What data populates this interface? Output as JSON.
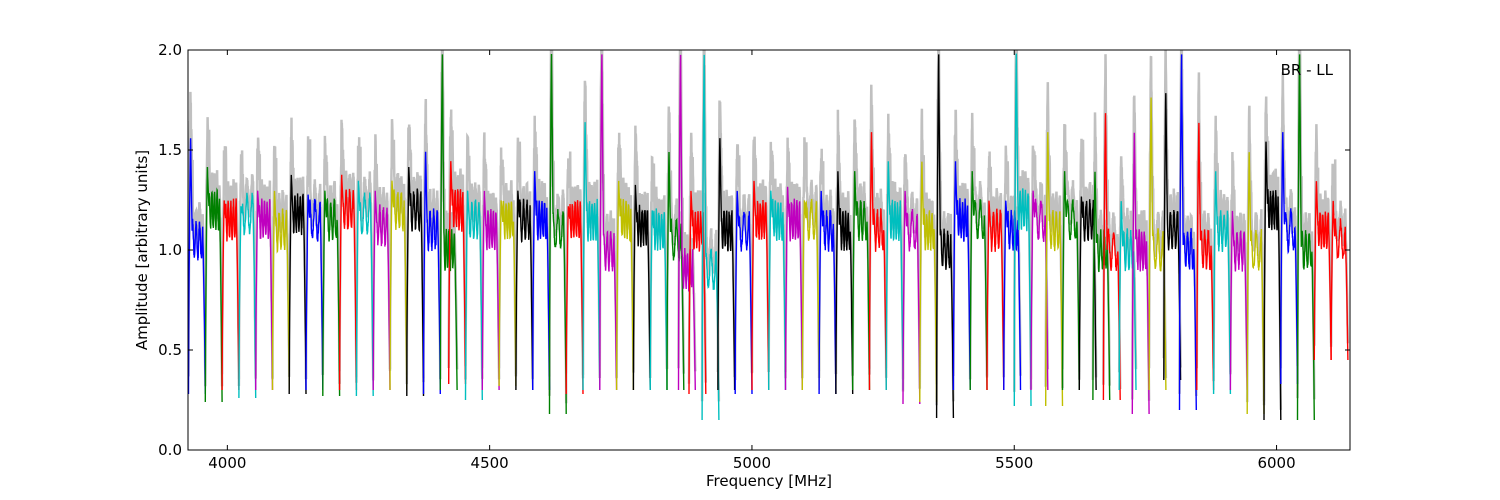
{
  "chart_data": {
    "type": "line",
    "xlabel": "Frequency [MHz]",
    "ylabel": "Amplitude [arbitrary units]",
    "annotation": "BR - LL",
    "xlim": [
      3925,
      6140
    ],
    "ylim": [
      0.0,
      2.0
    ],
    "x_ticks": [
      4000,
      4500,
      5000,
      5500,
      6000
    ],
    "y_ticks": [
      0.0,
      0.5,
      1.0,
      1.5,
      2.0
    ],
    "x_tick_labels": [
      "4000",
      "4500",
      "5000",
      "5500",
      "6000"
    ],
    "y_tick_labels": [
      "0.0",
      "0.5",
      "1.0",
      "1.5",
      "2.0"
    ],
    "grid": false,
    "colors": [
      "#0000ff",
      "#008000",
      "#ff0000",
      "#00bfbf",
      "#bf00bf",
      "#bfbf00",
      "#000000"
    ],
    "background_trace_color": "#c0c0c0",
    "spw_width_mhz": 32,
    "series": [
      {
        "color": "#0000ff",
        "x_start": 3926,
        "peak": 1.57,
        "level": 1.05,
        "floor": 0.28
      },
      {
        "color": "#008000",
        "x_start": 3958,
        "peak": 1.42,
        "level": 1.2,
        "floor": 0.24
      },
      {
        "color": "#ff0000",
        "x_start": 3990,
        "peak": 1.25,
        "level": 1.15,
        "floor": 0.3
      },
      {
        "color": "#00bfbf",
        "x_start": 4022,
        "peak": 1.22,
        "level": 1.18,
        "floor": 0.26
      },
      {
        "color": "#bf00bf",
        "x_start": 4054,
        "peak": 1.3,
        "level": 1.15,
        "floor": 0.3
      },
      {
        "color": "#bfbf00",
        "x_start": 4086,
        "peak": 1.3,
        "level": 1.1,
        "floor": 0.3
      },
      {
        "color": "#000000",
        "x_start": 4118,
        "peak": 1.38,
        "level": 1.18,
        "floor": 0.28
      },
      {
        "color": "#0000ff",
        "x_start": 4150,
        "peak": 1.28,
        "level": 1.15,
        "floor": 0.3
      },
      {
        "color": "#008000",
        "x_start": 4182,
        "peak": 1.3,
        "level": 1.15,
        "floor": 0.27
      },
      {
        "color": "#ff0000",
        "x_start": 4214,
        "peak": 1.38,
        "level": 1.2,
        "floor": 0.3
      },
      {
        "color": "#00bfbf",
        "x_start": 4246,
        "peak": 1.35,
        "level": 1.18,
        "floor": 0.27
      },
      {
        "color": "#bf00bf",
        "x_start": 4278,
        "peak": 1.3,
        "level": 1.12,
        "floor": 0.3
      },
      {
        "color": "#bfbf00",
        "x_start": 4310,
        "peak": 1.35,
        "level": 1.2,
        "floor": 0.3
      },
      {
        "color": "#000000",
        "x_start": 4342,
        "peak": 1.42,
        "level": 1.2,
        "floor": 0.27
      },
      {
        "color": "#0000ff",
        "x_start": 4374,
        "peak": 1.5,
        "level": 1.1,
        "floor": 0.28
      },
      {
        "color": "#008000",
        "x_start": 4406,
        "peak": 2.0,
        "level": 1.0,
        "floor": 0.3
      },
      {
        "color": "#ff0000",
        "x_start": 4422,
        "peak": 1.45,
        "level": 1.2,
        "floor": 0.33
      },
      {
        "color": "#00bfbf",
        "x_start": 4454,
        "peak": 1.3,
        "level": 1.15,
        "floor": 0.25
      },
      {
        "color": "#bf00bf",
        "x_start": 4486,
        "peak": 1.3,
        "level": 1.1,
        "floor": 0.3
      },
      {
        "color": "#bfbf00",
        "x_start": 4518,
        "peak": 1.25,
        "level": 1.15,
        "floor": 0.32
      },
      {
        "color": "#000000",
        "x_start": 4550,
        "peak": 1.3,
        "level": 1.15,
        "floor": 0.3
      },
      {
        "color": "#0000ff",
        "x_start": 4582,
        "peak": 1.4,
        "level": 1.15,
        "floor": 0.3
      },
      {
        "color": "#008000",
        "x_start": 4614,
        "peak": 2.0,
        "level": 1.1,
        "floor": 0.18
      },
      {
        "color": "#ff0000",
        "x_start": 4646,
        "peak": 1.22,
        "level": 1.15,
        "floor": 0.28
      },
      {
        "color": "#00bfbf",
        "x_start": 4678,
        "peak": 1.65,
        "level": 1.15,
        "floor": 0.3
      },
      {
        "color": "#bf00bf",
        "x_start": 4710,
        "peak": 2.0,
        "level": 1.0,
        "floor": 0.3
      },
      {
        "color": "#bfbf00",
        "x_start": 4742,
        "peak": 1.35,
        "level": 1.15,
        "floor": 0.3
      },
      {
        "color": "#000000",
        "x_start": 4774,
        "peak": 1.33,
        "level": 1.12,
        "floor": 0.3
      },
      {
        "color": "#00bfbf",
        "x_start": 4806,
        "peak": 1.2,
        "level": 1.1,
        "floor": 0.3
      },
      {
        "color": "#008000",
        "x_start": 4838,
        "peak": 1.5,
        "level": 1.05,
        "floor": 0.3
      },
      {
        "color": "#bf00bf",
        "x_start": 4860,
        "peak": 2.0,
        "level": 0.9,
        "floor": 0.3
      },
      {
        "color": "#ff0000",
        "x_start": 4880,
        "peak": 1.3,
        "level": 1.1,
        "floor": 0.28
      },
      {
        "color": "#00bfbf",
        "x_start": 4905,
        "peak": 2.0,
        "level": 0.9,
        "floor": 0.15
      },
      {
        "color": "#000000",
        "x_start": 4935,
        "peak": 1.57,
        "level": 1.1,
        "floor": 0.3
      },
      {
        "color": "#0000ff",
        "x_start": 4968,
        "peak": 1.3,
        "level": 1.1,
        "floor": 0.28
      },
      {
        "color": "#ff0000",
        "x_start": 5000,
        "peak": 1.35,
        "level": 1.15,
        "floor": 0.3
      },
      {
        "color": "#00bfbf",
        "x_start": 5032,
        "peak": 1.3,
        "level": 1.15,
        "floor": 0.3
      },
      {
        "color": "#bf00bf",
        "x_start": 5064,
        "peak": 1.32,
        "level": 1.15,
        "floor": 0.3
      },
      {
        "color": "#bfbf00",
        "x_start": 5096,
        "peak": 1.25,
        "level": 1.15,
        "floor": 0.3
      },
      {
        "color": "#0000ff",
        "x_start": 5128,
        "peak": 1.3,
        "level": 1.1,
        "floor": 0.28
      },
      {
        "color": "#000000",
        "x_start": 5160,
        "peak": 1.4,
        "level": 1.1,
        "floor": 0.28
      },
      {
        "color": "#008000",
        "x_start": 5192,
        "peak": 1.4,
        "level": 1.15,
        "floor": 0.3
      },
      {
        "color": "#ff0000",
        "x_start": 5224,
        "peak": 1.6,
        "level": 1.1,
        "floor": 0.3
      },
      {
        "color": "#00bfbf",
        "x_start": 5256,
        "peak": 1.45,
        "level": 1.15,
        "floor": 0.3
      },
      {
        "color": "#bf00bf",
        "x_start": 5288,
        "peak": 1.3,
        "level": 1.1,
        "floor": 0.23
      },
      {
        "color": "#bfbf00",
        "x_start": 5320,
        "peak": 1.45,
        "level": 1.1,
        "floor": 0.24
      },
      {
        "color": "#000000",
        "x_start": 5352,
        "peak": 2.0,
        "level": 1.0,
        "floor": 0.16
      },
      {
        "color": "#0000ff",
        "x_start": 5384,
        "peak": 1.45,
        "level": 1.15,
        "floor": 0.3
      },
      {
        "color": "#008000",
        "x_start": 5416,
        "peak": 1.4,
        "level": 1.15,
        "floor": 0.3
      },
      {
        "color": "#ff0000",
        "x_start": 5448,
        "peak": 1.25,
        "level": 1.1,
        "floor": 0.3
      },
      {
        "color": "#0000ff",
        "x_start": 5480,
        "peak": 1.25,
        "level": 1.1,
        "floor": 0.3
      },
      {
        "color": "#00bfbf",
        "x_start": 5500,
        "peak": 2.0,
        "level": 1.2,
        "floor": 0.22
      },
      {
        "color": "#bf00bf",
        "x_start": 5532,
        "peak": 1.3,
        "level": 1.15,
        "floor": 0.3
      },
      {
        "color": "#bfbf00",
        "x_start": 5560,
        "peak": 1.6,
        "level": 1.1,
        "floor": 0.22
      },
      {
        "color": "#008000",
        "x_start": 5592,
        "peak": 1.4,
        "level": 1.15,
        "floor": 0.3
      },
      {
        "color": "#000000",
        "x_start": 5624,
        "peak": 1.27,
        "level": 1.15,
        "floor": 0.3
      },
      {
        "color": "#008000",
        "x_start": 5650,
        "peak": 1.4,
        "level": 1.0,
        "floor": 0.25
      },
      {
        "color": "#ff0000",
        "x_start": 5670,
        "peak": 1.7,
        "level": 1.0,
        "floor": 0.25
      },
      {
        "color": "#00bfbf",
        "x_start": 5700,
        "peak": 1.25,
        "level": 1.0,
        "floor": 0.3
      },
      {
        "color": "#bf00bf",
        "x_start": 5725,
        "peak": 1.6,
        "level": 1.0,
        "floor": 0.18
      },
      {
        "color": "#bfbf00",
        "x_start": 5757,
        "peak": 1.78,
        "level": 1.0,
        "floor": 0.3
      },
      {
        "color": "#000000",
        "x_start": 5785,
        "peak": 1.8,
        "level": 1.1,
        "floor": 0.35
      },
      {
        "color": "#0000ff",
        "x_start": 5815,
        "peak": 2.0,
        "level": 1.0,
        "floor": 0.2
      },
      {
        "color": "#ff0000",
        "x_start": 5848,
        "peak": 1.65,
        "level": 1.0,
        "floor": 0.3
      },
      {
        "color": "#00bfbf",
        "x_start": 5880,
        "peak": 1.4,
        "level": 1.1,
        "floor": 0.28
      },
      {
        "color": "#bf00bf",
        "x_start": 5912,
        "peak": 1.2,
        "level": 1.0,
        "floor": 0.3
      },
      {
        "color": "#bfbf00",
        "x_start": 5944,
        "peak": 1.5,
        "level": 1.0,
        "floor": 0.18
      },
      {
        "color": "#000000",
        "x_start": 5976,
        "peak": 1.55,
        "level": 1.2,
        "floor": 0.15
      },
      {
        "color": "#0000ff",
        "x_start": 6008,
        "peak": 1.6,
        "level": 1.1,
        "floor": 0.33
      },
      {
        "color": "#008000",
        "x_start": 6040,
        "peak": 2.0,
        "level": 1.0,
        "floor": 0.15
      },
      {
        "color": "#ff0000",
        "x_start": 6072,
        "peak": 1.35,
        "level": 1.1,
        "floor": 0.45
      },
      {
        "color": "#ff0000",
        "x_start": 6104,
        "peak": 1.25,
        "level": 1.05,
        "floor": 0.45
      }
    ]
  }
}
